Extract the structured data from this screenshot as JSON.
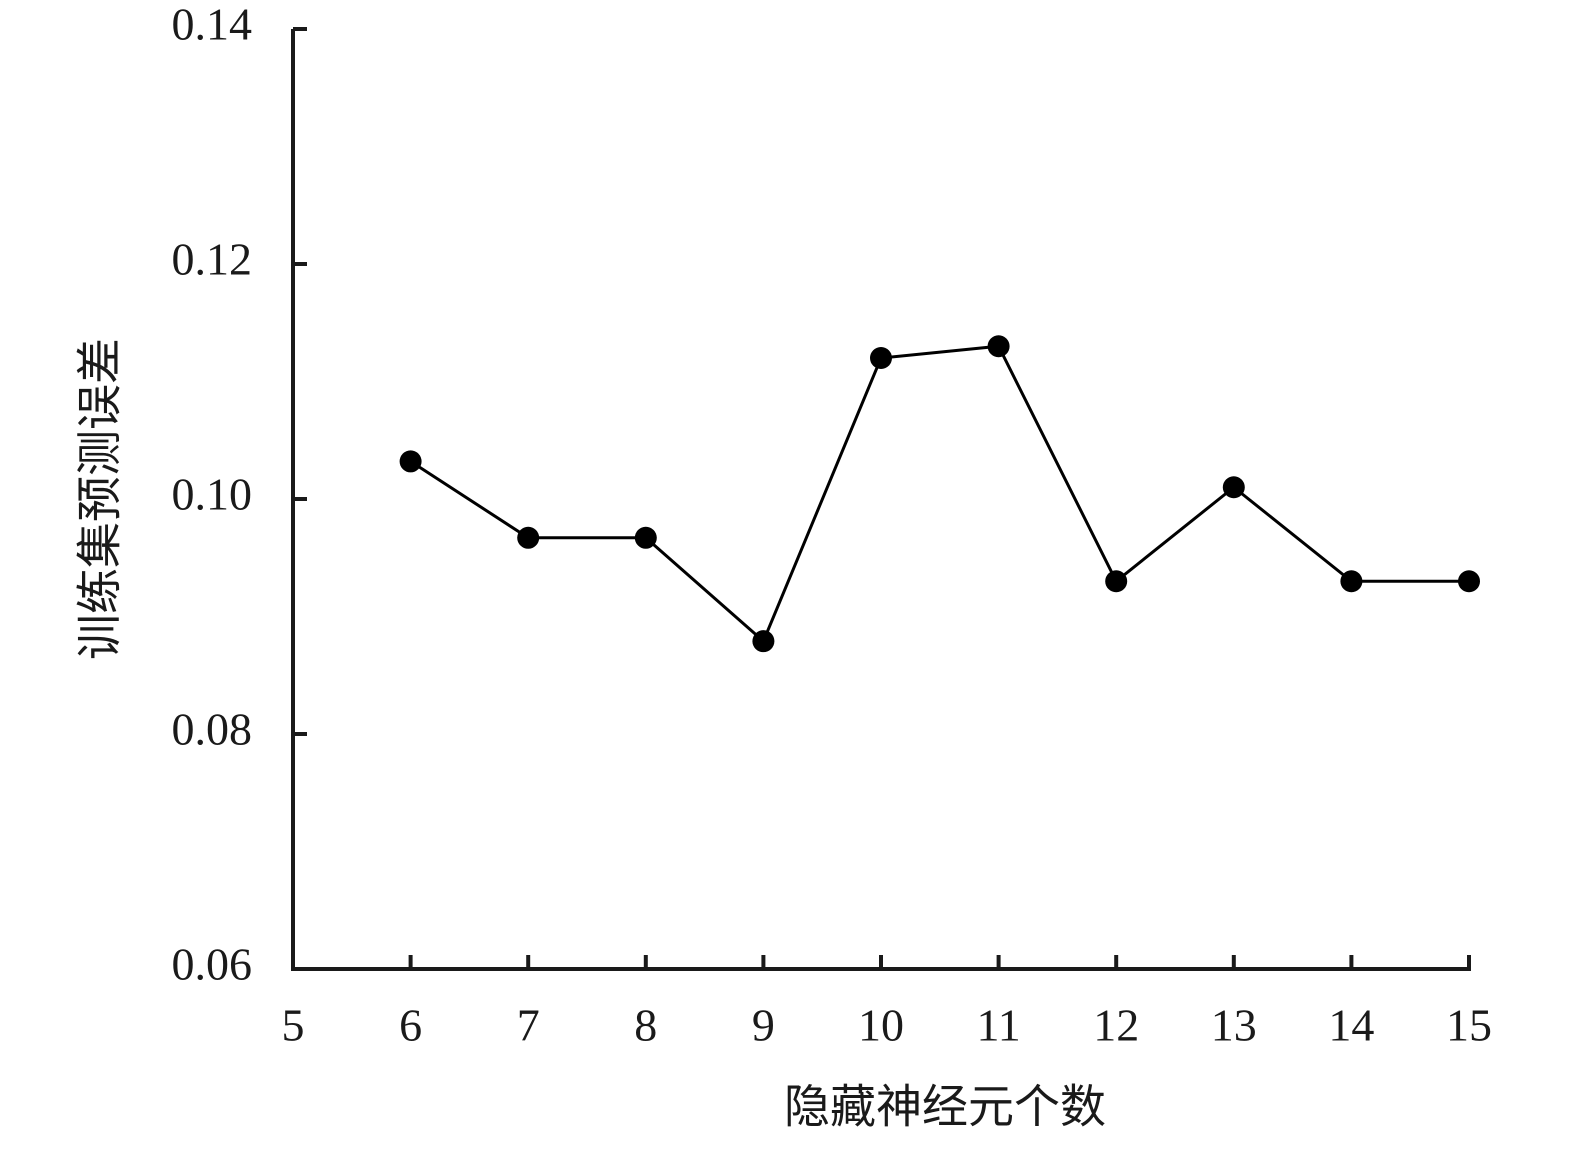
{
  "chart_data": {
    "type": "line",
    "xlabel": "隐藏神经元个数",
    "ylabel": "训练集预测误差",
    "x": [
      6,
      7,
      8,
      9,
      10,
      11,
      12,
      13,
      14,
      15
    ],
    "series": [
      {
        "color": "#000000",
        "values": [
          0.1032,
          0.0967,
          0.0967,
          0.0879,
          0.112,
          0.113,
          0.093,
          0.101,
          0.093,
          0.093
        ]
      }
    ],
    "xlim": [
      5,
      15
    ],
    "xticks": [
      5,
      6,
      7,
      8,
      9,
      10,
      11,
      12,
      13,
      14,
      15
    ],
    "ylim": [
      0.06,
      0.14
    ],
    "yticks": [
      0.06,
      0.08,
      {
        "value": 0.1,
        "label": "0.10"
      },
      0.12,
      0.14
    ],
    "grid": false
  }
}
